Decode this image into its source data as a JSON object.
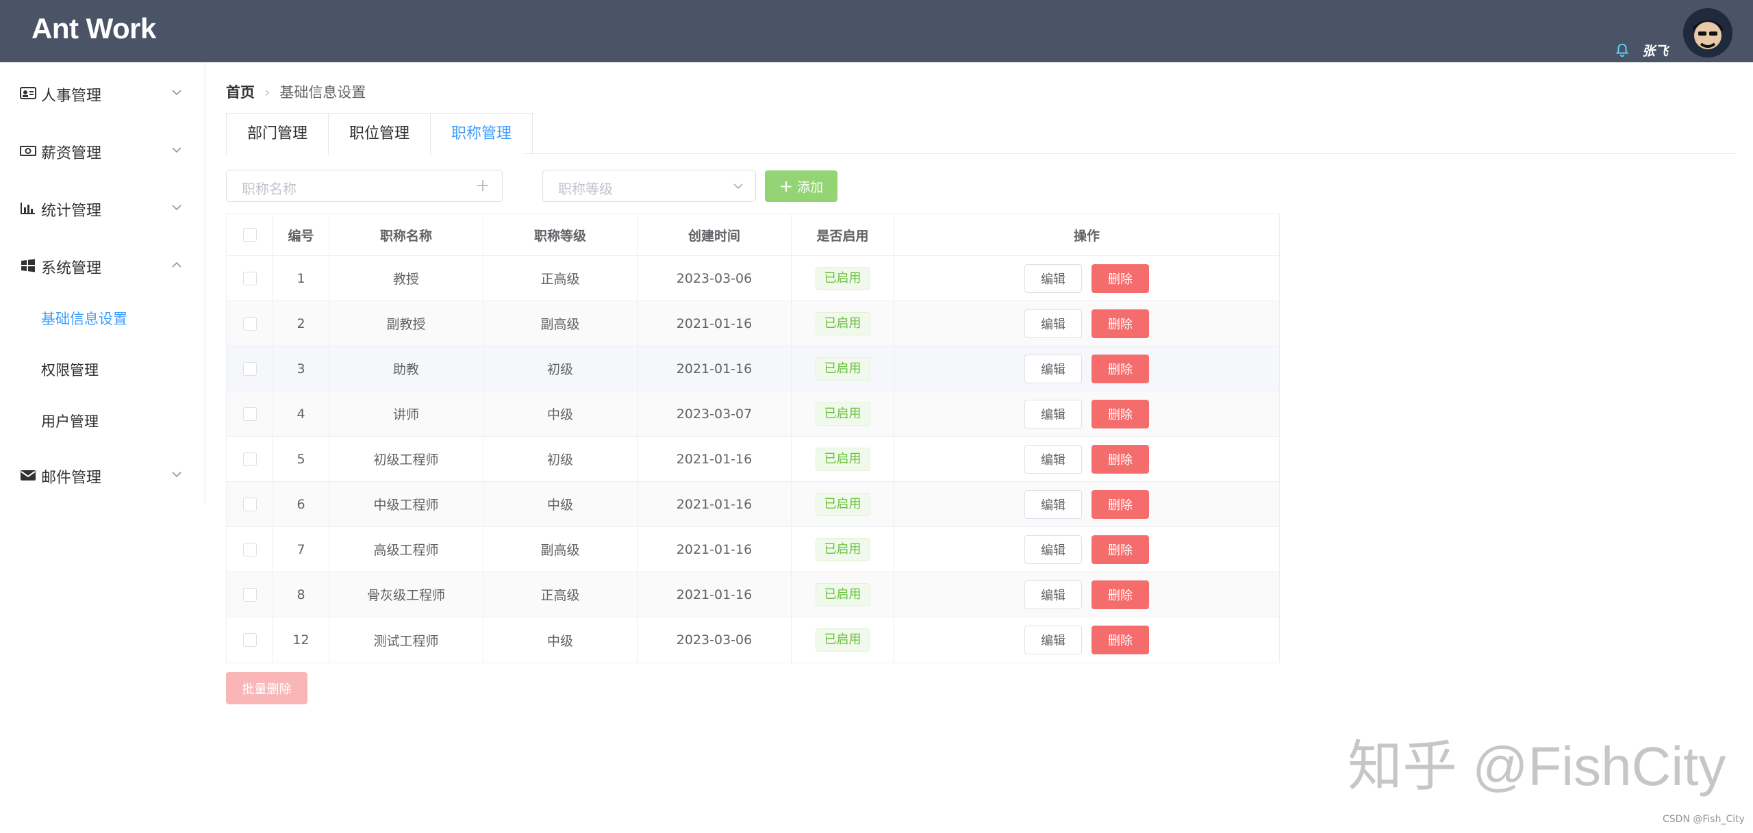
{
  "app": {
    "logo": "Ant Work",
    "username": "张飞"
  },
  "sidebar": {
    "items": [
      {
        "label": "人事管理",
        "icon": "id-card-icon"
      },
      {
        "label": "薪资管理",
        "icon": "money-icon"
      },
      {
        "label": "统计管理",
        "icon": "bar-chart-icon"
      },
      {
        "label": "系统管理",
        "icon": "windows-icon",
        "expanded": true,
        "children": [
          "基础信息设置",
          "权限管理",
          "用户管理"
        ]
      },
      {
        "label": "邮件管理",
        "icon": "envelope-icon"
      }
    ]
  },
  "breadcrumb": {
    "home": "首页",
    "current": "基础信息设置"
  },
  "tabs": [
    "部门管理",
    "职位管理",
    "职称管理"
  ],
  "active_tab": 2,
  "toolbar": {
    "name_placeholder": "职称名称",
    "level_placeholder": "职称等级",
    "add_label": "添加"
  },
  "table": {
    "headers": [
      "编号",
      "职称名称",
      "职称等级",
      "创建时间",
      "是否启用",
      "操作"
    ],
    "rows": [
      {
        "id": "1",
        "name": "教授",
        "level": "正高级",
        "date": "2023-03-06",
        "status": "已启用"
      },
      {
        "id": "2",
        "name": "副教授",
        "level": "副高级",
        "date": "2021-01-16",
        "status": "已启用"
      },
      {
        "id": "3",
        "name": "助教",
        "level": "初级",
        "date": "2021-01-16",
        "status": "已启用"
      },
      {
        "id": "4",
        "name": "讲师",
        "level": "中级",
        "date": "2023-03-07",
        "status": "已启用"
      },
      {
        "id": "5",
        "name": "初级工程师",
        "level": "初级",
        "date": "2021-01-16",
        "status": "已启用"
      },
      {
        "id": "6",
        "name": "中级工程师",
        "level": "中级",
        "date": "2021-01-16",
        "status": "已启用"
      },
      {
        "id": "7",
        "name": "高级工程师",
        "level": "副高级",
        "date": "2021-01-16",
        "status": "已启用"
      },
      {
        "id": "8",
        "name": "骨灰级工程师",
        "level": "正高级",
        "date": "2021-01-16",
        "status": "已启用"
      },
      {
        "id": "12",
        "name": "测试工程师",
        "level": "中级",
        "date": "2023-03-06",
        "status": "已启用"
      }
    ],
    "edit_label": "编辑",
    "delete_label": "删除"
  },
  "batch_delete_label": "批量删除",
  "watermark": "知乎 @FishCity",
  "credit": "CSDN @Fish_City",
  "colors": {
    "header_bg": "#4b5466",
    "accent": "#409eff",
    "success": "#67c23a",
    "add_button": "#95d475",
    "danger": "#f56c6c",
    "batch_disabled": "#fab6b6"
  }
}
